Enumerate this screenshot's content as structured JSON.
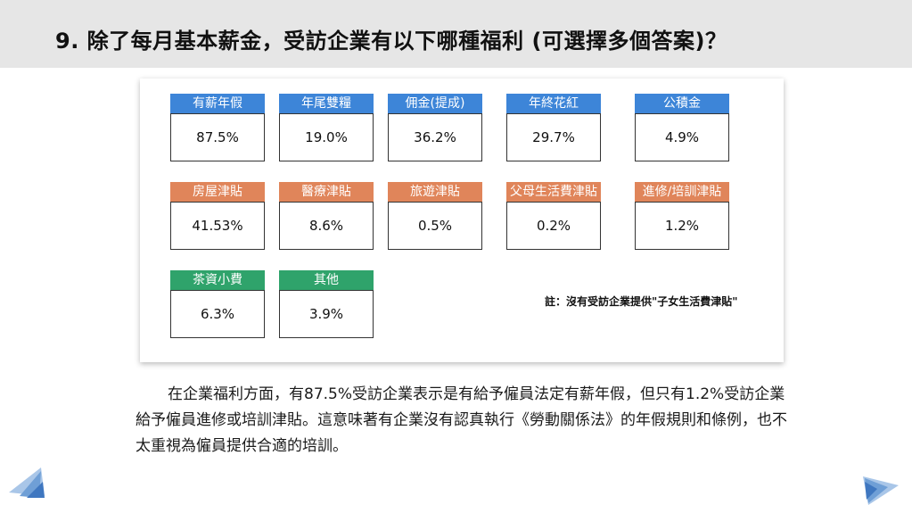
{
  "header": {
    "title": "9. 除了每月基本薪金，受訪企業有以下哪種福利 (可選擇多個答案)？"
  },
  "benefits": [
    {
      "label": "有薪年假",
      "value": "87.5%",
      "color": "#3d85d8"
    },
    {
      "label": "年尾雙糧",
      "value": "19.0%",
      "color": "#3d85d8"
    },
    {
      "label": "佣金(提成)",
      "value": "36.2%",
      "color": "#3d85d8"
    },
    {
      "label": "年終花紅",
      "value": "29.7%",
      "color": "#3d85d8"
    },
    {
      "label": "公積金",
      "value": "4.9%",
      "color": "#3d85d8"
    },
    {
      "label": "房屋津貼",
      "value": "41.53%",
      "color": "#e0855a"
    },
    {
      "label": "醫療津貼",
      "value": "8.6%",
      "color": "#e0855a"
    },
    {
      "label": "旅遊津貼",
      "value": "0.5%",
      "color": "#e0855a"
    },
    {
      "label": "父母生活費津貼",
      "value": "0.2%",
      "color": "#e0855a"
    },
    {
      "label": "進修/培訓津貼",
      "value": "1.2%",
      "color": "#e0855a"
    },
    {
      "label": "茶資小費",
      "value": "6.3%",
      "color": "#2fa36b"
    },
    {
      "label": "其他",
      "value": "3.9%",
      "color": "#2fa36b"
    }
  ],
  "note": "註：沒有受訪企業提供\"子女生活費津貼\"",
  "paragraph": "在企業福利方面，有87.5%受訪企業表示是有給予僱員法定有薪年假，但只有1.2%受訪企業給予僱員進修或培訓津貼。這意味著有企業沒有認真執行《勞動關係法》的年假規則和條例，也不太重視為僱員提供合適的培訓。"
}
